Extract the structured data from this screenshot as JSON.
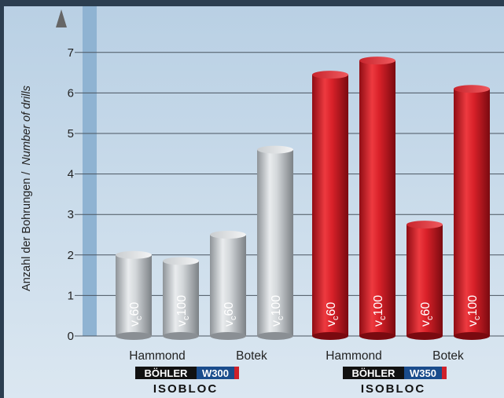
{
  "chart_data": {
    "type": "bar",
    "ylabel_de": "Anzahl der Bohrungen /",
    "ylabel_en": "Number of drills",
    "ylim": [
      0,
      7.5
    ],
    "yticks": [
      0,
      1,
      2,
      3,
      4,
      5,
      6,
      7
    ],
    "grid": true,
    "bars": [
      {
        "group": "W300",
        "category": "Hammond",
        "speed": "60",
        "value": 2.0,
        "color": "silver"
      },
      {
        "group": "W300",
        "category": "Hammond",
        "speed": "100",
        "value": 1.85,
        "color": "silver"
      },
      {
        "group": "W300",
        "category": "Botek",
        "speed": "60",
        "value": 2.5,
        "color": "silver"
      },
      {
        "group": "W300",
        "category": "Botek",
        "speed": "100",
        "value": 4.6,
        "color": "silver"
      },
      {
        "group": "W350",
        "category": "Hammond",
        "speed": "60",
        "value": 6.45,
        "color": "red"
      },
      {
        "group": "W350",
        "category": "Hammond",
        "speed": "100",
        "value": 6.8,
        "color": "red"
      },
      {
        "group": "W350",
        "category": "Botek",
        "speed": "60",
        "value": 2.75,
        "color": "red"
      },
      {
        "group": "W350",
        "category": "Botek",
        "speed": "100",
        "value": 6.1,
        "color": "red"
      }
    ],
    "bar_label_prefix": "v",
    "bar_label_sub": "c",
    "categories": [
      "Hammond",
      "Botek",
      "Hammond",
      "Botek"
    ],
    "groups": [
      {
        "brand": "BÖHLER",
        "grade": "W300",
        "sub": "ISOBLOC"
      },
      {
        "brand": "BÖHLER",
        "grade": "W350",
        "sub": "ISOBLOC"
      }
    ]
  },
  "colors": {
    "frame": "#2c3e50",
    "plot_bg": "#c5d8e8",
    "axis_band": "#8ab0d0",
    "silver": "#c0c4c8",
    "red": "#d0202a",
    "grade_bg": "#1a4c8c"
  }
}
